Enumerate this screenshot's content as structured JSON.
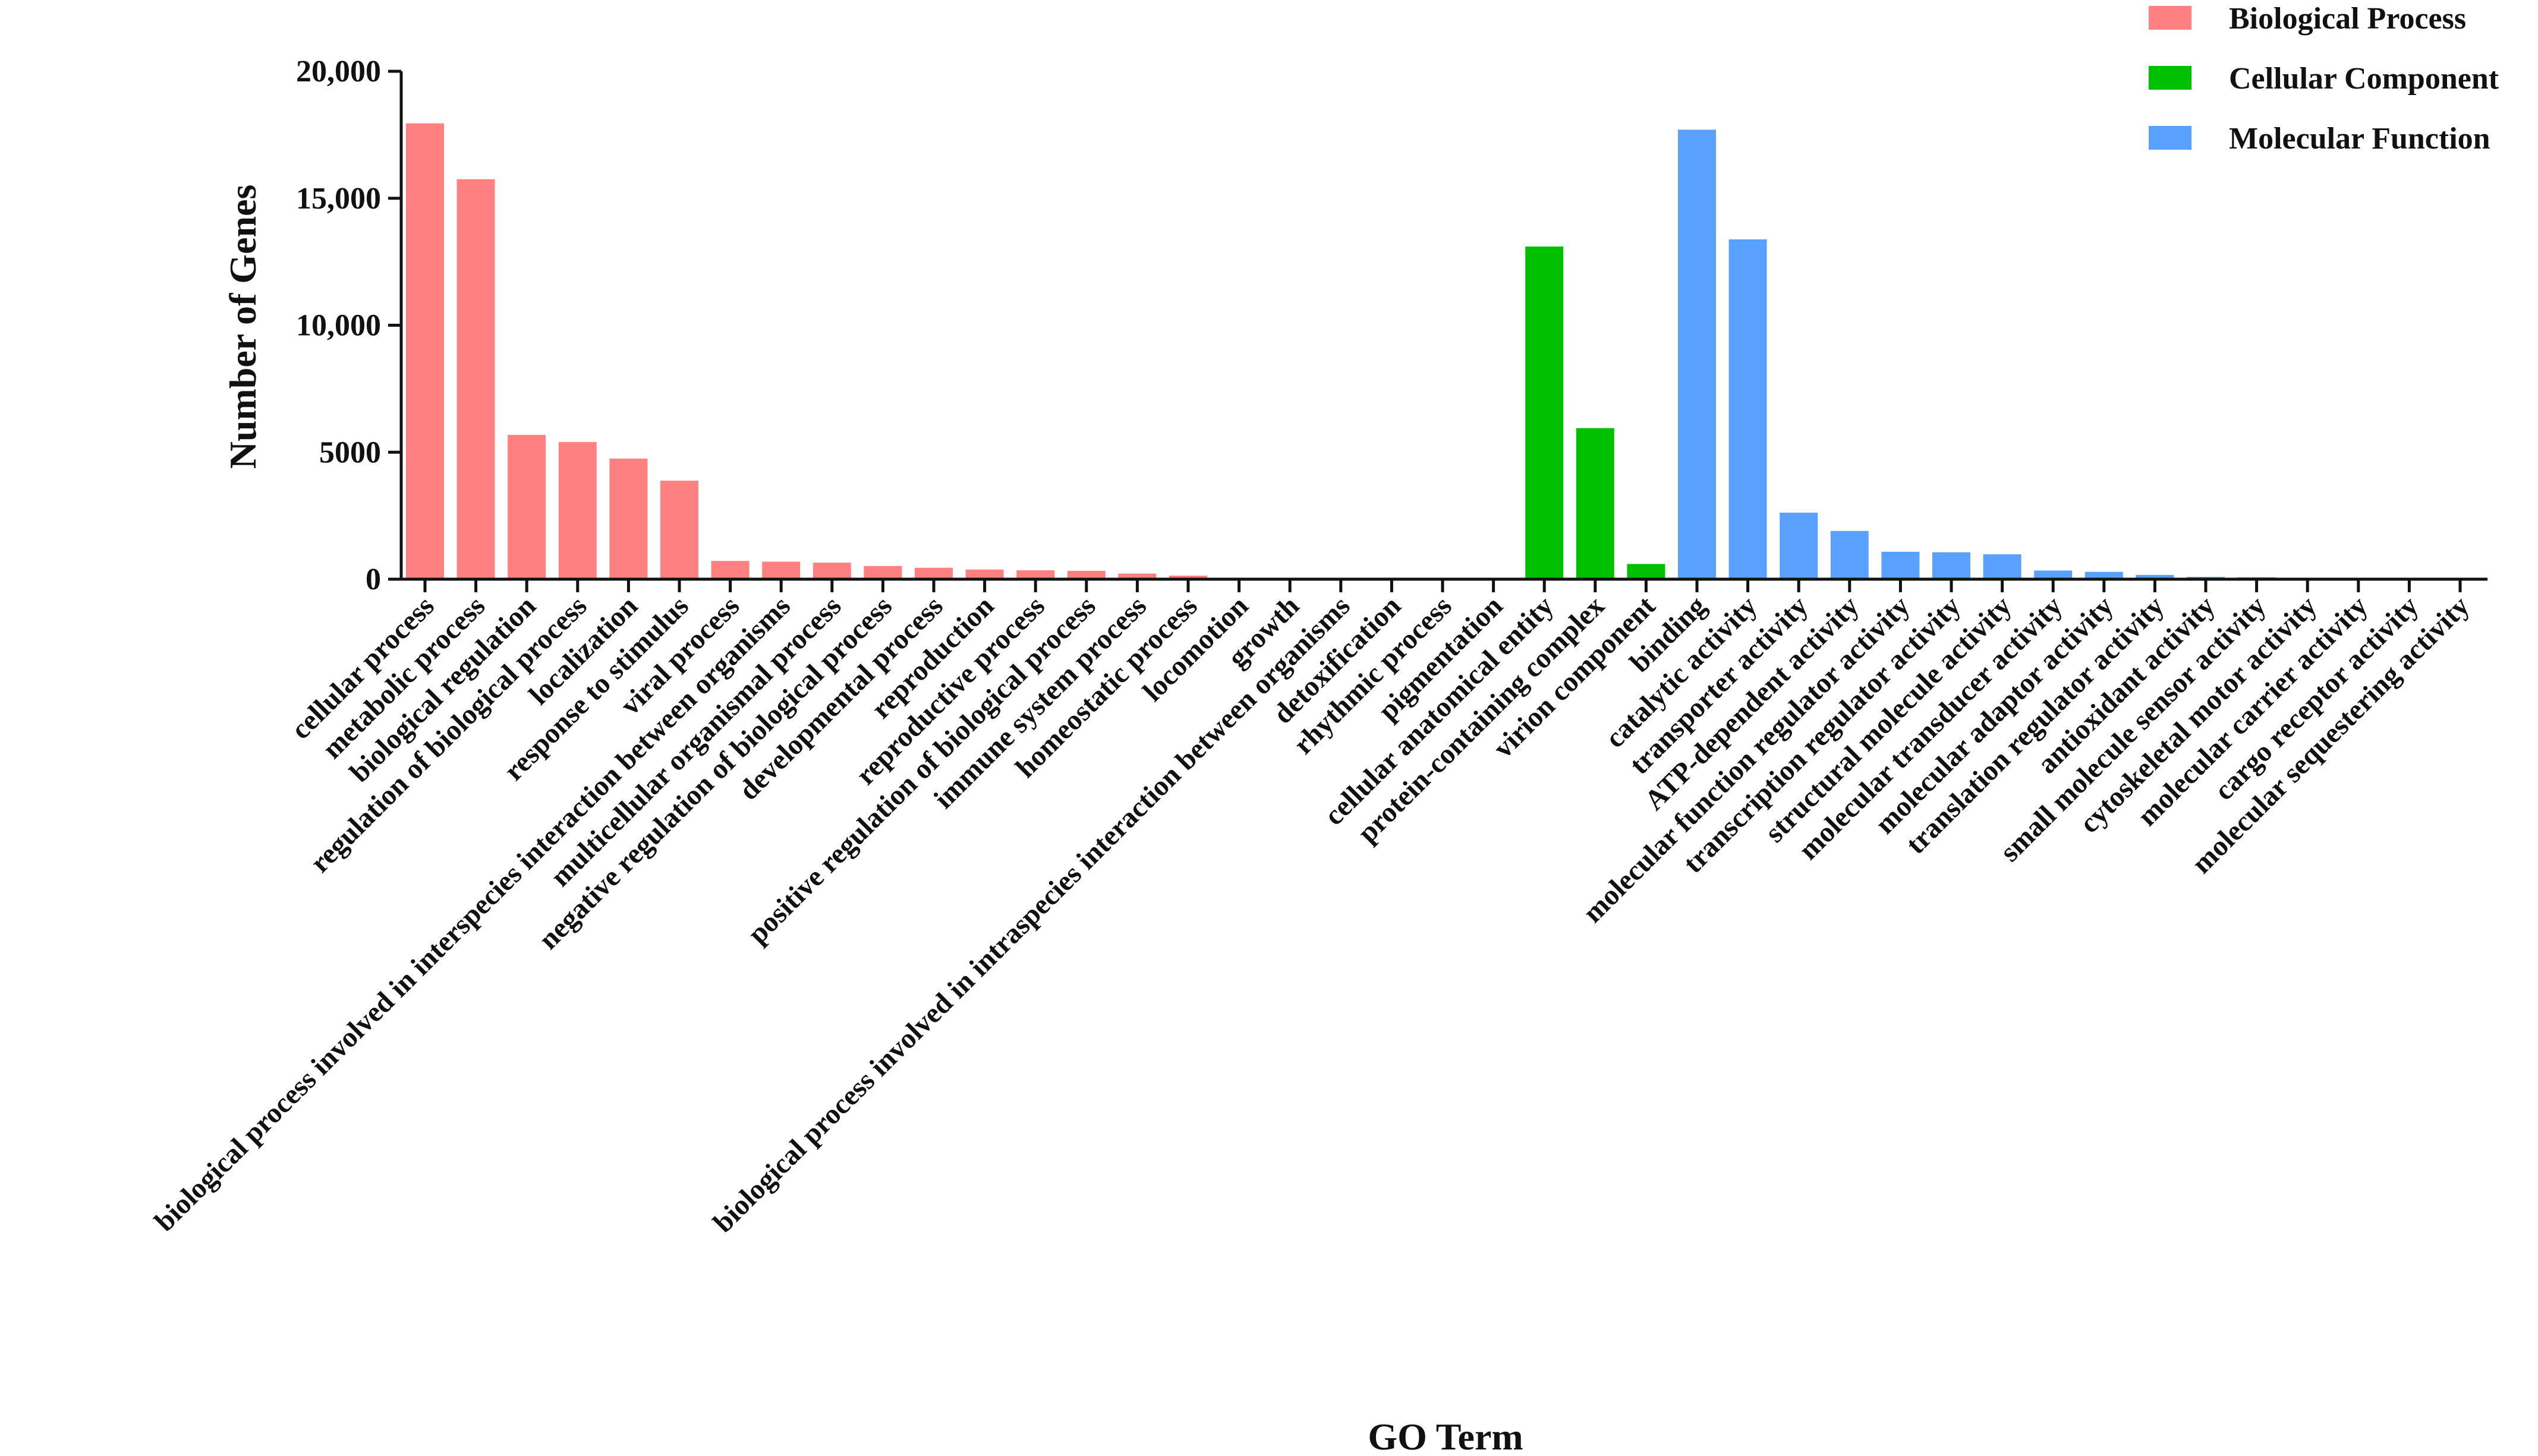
{
  "chart_data": {
    "type": "bar",
    "title": "",
    "xlabel": "GO Term",
    "ylabel": "Number of Genes",
    "ylim": [
      0,
      20000
    ],
    "yticks": [
      {
        "value": 0,
        "label": "0"
      },
      {
        "value": 5000,
        "label": "5000"
      },
      {
        "value": 10000,
        "label": "10,000"
      },
      {
        "value": 15000,
        "label": "15,000"
      },
      {
        "value": 20000,
        "label": "20,000"
      }
    ],
    "grid": false,
    "legend_position": "top-right",
    "series": [
      {
        "name": "Biological Process",
        "color": "#FF8080",
        "categories": [
          "cellular process",
          "metabolic process",
          "biological regulation",
          "regulation of biological process",
          "localization",
          "response to stimulus",
          "viral process",
          "biological process involved in interspecies interaction between organisms",
          "multicellular organismal process",
          "negative regulation of biological process",
          "developmental process",
          "reproduction",
          "reproductive process",
          "positive regulation of biological process",
          "immune system process",
          "homeostatic process",
          "locomotion",
          "growth",
          "biological process involved in intraspecies interaction between organisms",
          "detoxification",
          "rhythmic process",
          "pigmentation"
        ],
        "values": [
          17950,
          15750,
          5680,
          5400,
          4750,
          3880,
          720,
          690,
          650,
          520,
          450,
          380,
          350,
          330,
          220,
          140,
          25,
          18,
          12,
          8,
          6,
          4
        ]
      },
      {
        "name": "Cellular Component",
        "color": "#00C000",
        "categories": [
          "cellular anatomical entity",
          "protein-containing complex",
          "virion component"
        ],
        "values": [
          13100,
          5950,
          600
        ]
      },
      {
        "name": "Molecular Function",
        "color": "#5AA0FF",
        "categories": [
          "binding",
          "catalytic activity",
          "transporter activity",
          "ATP-dependent activity",
          "molecular function regulator activity",
          "transcription regulator activity",
          "structural molecule activity",
          "molecular transducer activity",
          "molecular adaptor activity",
          "translation regulator activity",
          "antioxidant activity",
          "small molecule sensor activity",
          "cytoskeletal motor activity",
          "molecular carrier activity",
          "cargo receptor activity",
          "molecular sequestering activity"
        ],
        "values": [
          17700,
          13380,
          2620,
          1900,
          1080,
          1060,
          980,
          340,
          290,
          170,
          90,
          75,
          55,
          15,
          10,
          8
        ]
      }
    ]
  }
}
